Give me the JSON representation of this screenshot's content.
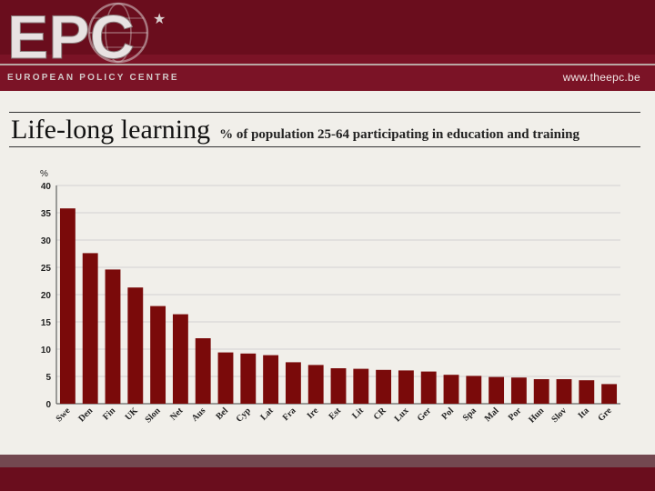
{
  "header": {
    "logo_text": "EPC",
    "logo_tagline": "EUROPEAN POLICY CENTRE",
    "url": "www.theepc.be"
  },
  "title": {
    "main": "Life-long learning",
    "subtitle": "% of population 25-64 participating in education and training"
  },
  "chart_data": {
    "type": "bar",
    "title": "Life-long learning",
    "subtitle": "% of population 25-64 participating in education and training",
    "ylabel": "%",
    "xlabel": "",
    "ylim": [
      0,
      40
    ],
    "yticks": [
      0,
      5,
      10,
      15,
      20,
      25,
      30,
      35,
      40
    ],
    "grid": true,
    "legend": "none",
    "bar_color": "#7a0a0a",
    "categories": [
      "Swe",
      "Den",
      "Fin",
      "UK",
      "Slon",
      "Net",
      "Aus",
      "Bel",
      "Cyp",
      "Lat",
      "Fra",
      "Ire",
      "Est",
      "Lit",
      "CR",
      "Lux",
      "Ger",
      "Pol",
      "Spa",
      "Mal",
      "Por",
      "Hun",
      "Slov",
      "Ita",
      "Gre"
    ],
    "values": [
      35.8,
      27.6,
      24.6,
      21.3,
      17.9,
      16.4,
      12.0,
      9.4,
      9.2,
      8.9,
      7.6,
      7.1,
      6.5,
      6.4,
      6.2,
      6.1,
      5.9,
      5.3,
      5.1,
      4.9,
      4.8,
      4.5,
      4.5,
      4.3,
      3.6
    ]
  }
}
